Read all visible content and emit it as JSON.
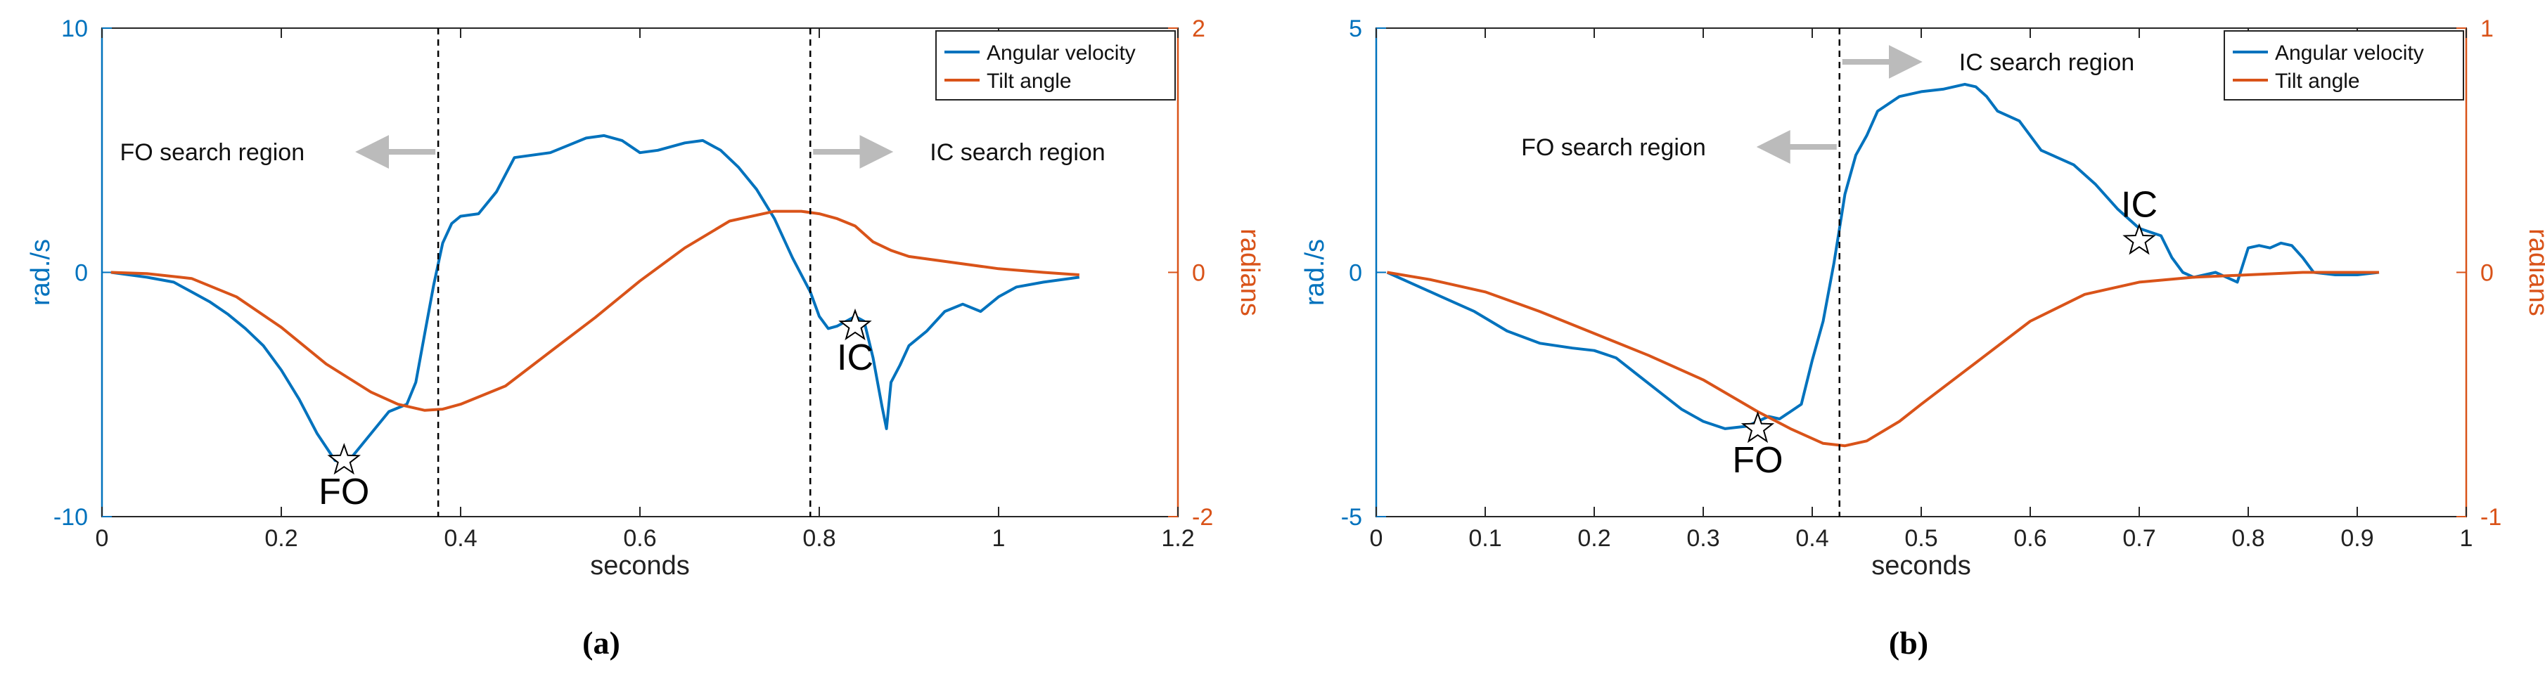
{
  "colors": {
    "angular_velocity": "#0072BD",
    "tilt_angle": "#D95319",
    "marker_fill": "#ffffff",
    "marker_stroke": "#000000",
    "arrow": "#BBBBBB",
    "axis": "#262626"
  },
  "chart_data": [
    {
      "id": "a",
      "caption_letter": "a",
      "type": "line",
      "xlabel": "seconds",
      "ylabel_left": "rad./s",
      "ylabel_right": "radians",
      "xlim": [
        0,
        1.2
      ],
      "ylim_left": [
        -10,
        10
      ],
      "ylim_right": [
        -2,
        2
      ],
      "xticks": [
        0,
        0.2,
        0.4,
        0.6,
        0.8,
        1,
        1.2
      ],
      "xtick_labels": [
        "0",
        "0.2",
        "0.4",
        "0.6",
        "0.8",
        "1",
        "1.2"
      ],
      "yticks_left": [
        -10,
        0,
        10
      ],
      "yticks_left_labels": [
        "-10",
        "0",
        "10"
      ],
      "yticks_right": [
        -2,
        0,
        2
      ],
      "yticks_right_labels": [
        "-2",
        "0",
        "2"
      ],
      "legend": [
        "Angular velocity",
        "Tilt angle"
      ],
      "legend_position": "top-right",
      "series": [
        {
          "name": "Angular velocity",
          "axis": "left",
          "x": [
            0.01,
            0.05,
            0.08,
            0.1,
            0.12,
            0.14,
            0.16,
            0.18,
            0.2,
            0.22,
            0.24,
            0.26,
            0.27,
            0.28,
            0.3,
            0.32,
            0.34,
            0.35,
            0.36,
            0.37,
            0.38,
            0.39,
            0.4,
            0.42,
            0.44,
            0.46,
            0.48,
            0.5,
            0.52,
            0.54,
            0.56,
            0.58,
            0.6,
            0.62,
            0.63,
            0.65,
            0.67,
            0.69,
            0.71,
            0.73,
            0.75,
            0.77,
            0.79,
            0.8,
            0.81,
            0.82,
            0.83,
            0.84,
            0.85,
            0.86,
            0.87,
            0.875,
            0.88,
            0.89,
            0.9,
            0.92,
            0.94,
            0.96,
            0.98,
            1.0,
            1.02,
            1.05,
            1.09
          ],
          "y": [
            0,
            -0.2,
            -0.4,
            -0.8,
            -1.2,
            -1.7,
            -2.3,
            -3.0,
            -4.0,
            -5.2,
            -6.6,
            -7.7,
            -7.8,
            -7.5,
            -6.6,
            -5.7,
            -5.4,
            -4.5,
            -2.5,
            -0.5,
            1.2,
            2.0,
            2.3,
            2.4,
            3.3,
            4.7,
            4.8,
            4.9,
            5.2,
            5.5,
            5.6,
            5.4,
            4.9,
            5.0,
            5.1,
            5.3,
            5.4,
            5.0,
            4.3,
            3.4,
            2.2,
            0.6,
            -0.8,
            -1.8,
            -2.3,
            -2.2,
            -2.0,
            -1.8,
            -2.0,
            -3.5,
            -5.5,
            -6.4,
            -4.5,
            -3.8,
            -3.0,
            -2.4,
            -1.6,
            -1.3,
            -1.6,
            -1.0,
            -0.6,
            -0.4,
            -0.2
          ]
        },
        {
          "name": "Tilt angle",
          "axis": "right",
          "x": [
            0.01,
            0.05,
            0.1,
            0.15,
            0.2,
            0.25,
            0.3,
            0.33,
            0.36,
            0.38,
            0.4,
            0.45,
            0.5,
            0.55,
            0.6,
            0.65,
            0.7,
            0.75,
            0.78,
            0.8,
            0.82,
            0.84,
            0.86,
            0.88,
            0.9,
            0.95,
            1.0,
            1.05,
            1.09
          ],
          "y": [
            0,
            -0.01,
            -0.05,
            -0.2,
            -0.45,
            -0.75,
            -0.98,
            -1.08,
            -1.13,
            -1.12,
            -1.08,
            -0.93,
            -0.65,
            -0.37,
            -0.07,
            0.2,
            0.42,
            0.5,
            0.5,
            0.48,
            0.44,
            0.38,
            0.25,
            0.18,
            0.13,
            0.08,
            0.03,
            0.0,
            -0.02
          ]
        }
      ],
      "events": [
        {
          "label": "FO",
          "x": 0.27,
          "y": -7.7
        },
        {
          "label": "IC",
          "x": 0.84,
          "y": -2.2
        }
      ],
      "search_lines": [
        0.375,
        0.79
      ],
      "regions": [
        {
          "label": "FO search region",
          "direction": "left",
          "boundary_index": 0
        },
        {
          "label": "IC search region",
          "direction": "right",
          "boundary_index": 1
        }
      ]
    },
    {
      "id": "b",
      "caption_letter": "b",
      "type": "line",
      "xlabel": "seconds",
      "ylabel_left": "rad./s",
      "ylabel_right": "radians",
      "xlim": [
        0,
        1.0
      ],
      "ylim_left": [
        -5,
        5
      ],
      "ylim_right": [
        -1,
        1
      ],
      "xticks": [
        0,
        0.1,
        0.2,
        0.3,
        0.4,
        0.5,
        0.6,
        0.7,
        0.8,
        0.9,
        1
      ],
      "xtick_labels": [
        "0",
        "0.1",
        "0.2",
        "0.3",
        "0.4",
        "0.5",
        "0.6",
        "0.7",
        "0.8",
        "0.9",
        "1"
      ],
      "yticks_left": [
        -5,
        0,
        5
      ],
      "yticks_left_labels": [
        "-5",
        "0",
        "5"
      ],
      "yticks_right": [
        -1,
        0,
        1
      ],
      "yticks_right_labels": [
        "-1",
        "0",
        "1"
      ],
      "legend": [
        "Angular velocity",
        "Tilt angle"
      ],
      "legend_position": "top-right",
      "series": [
        {
          "name": "Angular velocity",
          "axis": "left",
          "x": [
            0.01,
            0.03,
            0.06,
            0.09,
            0.12,
            0.15,
            0.18,
            0.2,
            0.22,
            0.24,
            0.26,
            0.28,
            0.3,
            0.32,
            0.34,
            0.36,
            0.37,
            0.38,
            0.39,
            0.4,
            0.41,
            0.42,
            0.425,
            0.43,
            0.44,
            0.45,
            0.46,
            0.48,
            0.5,
            0.52,
            0.54,
            0.55,
            0.56,
            0.57,
            0.58,
            0.59,
            0.6,
            0.61,
            0.62,
            0.64,
            0.66,
            0.68,
            0.7,
            0.72,
            0.73,
            0.74,
            0.75,
            0.76,
            0.77,
            0.78,
            0.79,
            0.8,
            0.81,
            0.82,
            0.83,
            0.84,
            0.85,
            0.86,
            0.88,
            0.9,
            0.92
          ],
          "y": [
            0,
            -0.2,
            -0.5,
            -0.8,
            -1.2,
            -1.45,
            -1.55,
            -1.6,
            -1.75,
            -2.1,
            -2.45,
            -2.8,
            -3.05,
            -3.2,
            -3.15,
            -2.95,
            -3.0,
            -2.85,
            -2.7,
            -1.8,
            -1.0,
            0.2,
            0.9,
            1.6,
            2.4,
            2.8,
            3.3,
            3.6,
            3.7,
            3.75,
            3.85,
            3.8,
            3.6,
            3.3,
            3.2,
            3.1,
            2.8,
            2.5,
            2.4,
            2.2,
            1.8,
            1.3,
            0.9,
            0.75,
            0.3,
            0.0,
            -0.1,
            -0.05,
            0.0,
            -0.1,
            -0.2,
            0.5,
            0.55,
            0.5,
            0.6,
            0.55,
            0.3,
            0.0,
            -0.05,
            -0.05,
            0.0
          ]
        },
        {
          "name": "Tilt angle",
          "axis": "right",
          "x": [
            0.01,
            0.05,
            0.1,
            0.15,
            0.2,
            0.25,
            0.3,
            0.35,
            0.38,
            0.41,
            0.43,
            0.45,
            0.48,
            0.5,
            0.55,
            0.6,
            0.65,
            0.7,
            0.75,
            0.8,
            0.85,
            0.88,
            0.92
          ],
          "y": [
            0,
            -0.03,
            -0.08,
            -0.16,
            -0.25,
            -0.34,
            -0.44,
            -0.57,
            -0.64,
            -0.7,
            -0.71,
            -0.69,
            -0.61,
            -0.54,
            -0.37,
            -0.2,
            -0.09,
            -0.04,
            -0.02,
            -0.01,
            0.0,
            0.0,
            0.0
          ]
        }
      ],
      "events": [
        {
          "label": "FO",
          "x": 0.35,
          "y": -3.2
        },
        {
          "label": "IC",
          "x": 0.7,
          "y": 0.65
        }
      ],
      "search_lines": [
        0.425
      ],
      "regions": [
        {
          "label": "FO search region",
          "direction": "left",
          "boundary_index": 0
        },
        {
          "label": "IC search region",
          "direction": "right",
          "boundary_index": 0
        }
      ]
    }
  ]
}
